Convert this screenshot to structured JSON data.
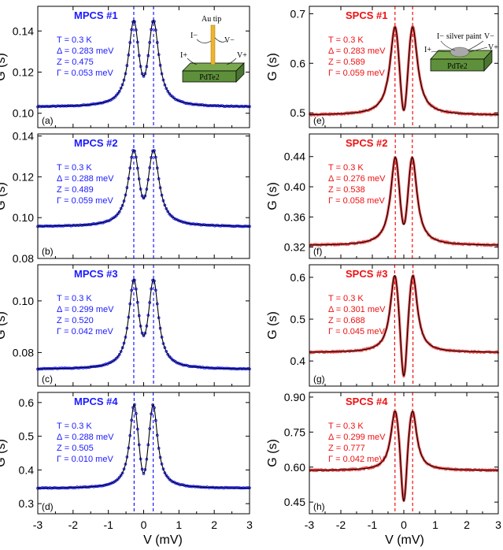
{
  "xlabel": "V (mV)",
  "ylabel": "G (s)",
  "xlim": [
    -3,
    3
  ],
  "x_ticks": [
    -3,
    -2,
    -1,
    0,
    1,
    2,
    3
  ],
  "colors": {
    "left_text": "#1a1aff",
    "left_data": "#1a1aff",
    "right_text": "#ee1111",
    "right_data": "#ee3333",
    "fit": "#000000",
    "pdte2_block": "#5e8f3a",
    "pdte2_label": "#d02020",
    "au_tip": "#f0b429"
  },
  "inset_left": {
    "tip_label": "Au tip",
    "material": "PdTe2",
    "current_minus": "I−",
    "current_plus": "I+",
    "voltage_minus": "V−",
    "voltage_plus": "V+"
  },
  "inset_right": {
    "paint_label": "silver paint",
    "material": "PdTe2",
    "current_minus": "I−",
    "current_plus": "I+",
    "voltage_minus": "V−",
    "voltage_plus": "V+"
  },
  "chart_data": [
    {
      "type": "line",
      "label": "MPCS #1",
      "letter": "(a)",
      "side": "left",
      "params": [
        "T = 0.3 K",
        "Δ = 0.283 meV",
        "Z = 0.475",
        "Γ = 0.053 meV"
      ],
      "ylim": [
        0.093,
        0.152
      ],
      "y_ticks": [
        0.1,
        0.12,
        0.14
      ],
      "y_tick_labels": [
        "0.10",
        "0.12",
        "0.14"
      ],
      "baseline": 0.103,
      "peak": 0.1455,
      "dip": 0.118,
      "peak_pos": 0.28,
      "gamma": 0.18,
      "inner_width": 0.11
    },
    {
      "type": "line",
      "label": "MPCS #2",
      "letter": "(b)",
      "side": "left",
      "params": [
        "T = 0.3 K",
        "Δ = 0.288 meV",
        "Z = 0.489",
        "Γ = 0.059 meV"
      ],
      "ylim": [
        0.08,
        0.141
      ],
      "y_ticks": [
        0.08,
        0.1,
        0.12,
        0.14
      ],
      "y_tick_labels": [
        "0.08",
        "0.10",
        "0.12",
        "0.14"
      ],
      "baseline": 0.0955,
      "peak": 0.1335,
      "dip": 0.1095,
      "peak_pos": 0.28,
      "gamma": 0.19,
      "inner_width": 0.11
    },
    {
      "type": "line",
      "label": "MPCS #3",
      "letter": "(c)",
      "side": "left",
      "params": [
        "T = 0.3 K",
        "Δ = 0.299 meV",
        "Z = 0.520",
        "Γ = 0.042 meV"
      ],
      "ylim": [
        0.067,
        0.114
      ],
      "y_ticks": [
        0.08,
        0.1
      ],
      "y_tick_labels": [
        "0.08",
        "0.10"
      ],
      "baseline": 0.0735,
      "peak": 0.1085,
      "dip": 0.0865,
      "peak_pos": 0.28,
      "gamma": 0.17,
      "inner_width": 0.1
    },
    {
      "type": "line",
      "label": "MPCS #4",
      "letter": "(d)",
      "side": "left",
      "params": [
        "T = 0.3 K",
        "Δ = 0.288 meV",
        "Z = 0.505",
        "Γ = 0.010 meV"
      ],
      "ylim": [
        0.27,
        0.63
      ],
      "y_ticks": [
        0.3,
        0.4,
        0.5,
        0.6
      ],
      "y_tick_labels": [
        "0.3",
        "0.4",
        "0.5",
        "0.6"
      ],
      "baseline": 0.345,
      "peak": 0.595,
      "dip": 0.39,
      "peak_pos": 0.27,
      "gamma": 0.15,
      "inner_width": 0.09
    },
    {
      "type": "line",
      "label": "SPCS #1",
      "letter": "(e)",
      "side": "right",
      "params": [
        "T = 0.3 K",
        "Δ = 0.283 meV",
        "Z = 0.589",
        "Γ = 0.059 meV"
      ],
      "ylim": [
        0.47,
        0.715
      ],
      "y_ticks": [
        0.5,
        0.6,
        0.7
      ],
      "y_tick_labels": [
        "0.5",
        "0.6",
        "0.7"
      ],
      "baseline": 0.495,
      "peak": 0.675,
      "dip": 0.505,
      "peak_pos": 0.28,
      "gamma": 0.19,
      "inner_width": 0.1
    },
    {
      "type": "line",
      "label": "SPCS #2",
      "letter": "(f)",
      "side": "right",
      "params": [
        "T = 0.3 K",
        "Δ = 0.276 meV",
        "Z = 0.538",
        "Γ = 0.058 meV"
      ],
      "ylim": [
        0.305,
        0.47
      ],
      "y_ticks": [
        0.32,
        0.36,
        0.4,
        0.44
      ],
      "y_tick_labels": [
        "0.32",
        "0.36",
        "0.40",
        "0.44"
      ],
      "baseline": 0.322,
      "peak": 0.44,
      "dip": 0.35,
      "peak_pos": 0.27,
      "gamma": 0.18,
      "inner_width": 0.1
    },
    {
      "type": "line",
      "label": "SPCS #3",
      "letter": "(g)",
      "side": "right",
      "params": [
        "T = 0.3 K",
        "Δ = 0.301 meV",
        "Z = 0.688",
        "Γ = 0.045 meV"
      ],
      "ylim": [
        0.34,
        0.63
      ],
      "y_ticks": [
        0.4,
        0.5,
        0.6
      ],
      "y_tick_labels": [
        "0.4",
        "0.5",
        "0.6"
      ],
      "baseline": 0.42,
      "peak": 0.605,
      "dip": 0.365,
      "peak_pos": 0.29,
      "gamma": 0.17,
      "inner_width": 0.09
    },
    {
      "type": "line",
      "label": "SPCS #4",
      "letter": "(h)",
      "side": "right",
      "params": [
        "T = 0.3 K",
        "Δ = 0.299 meV",
        "Z = 0.777",
        "Γ = 0.042 meV"
      ],
      "ylim": [
        0.4,
        0.92
      ],
      "y_ticks": [
        0.45,
        0.6,
        0.75,
        0.9
      ],
      "y_tick_labels": [
        "0.45",
        "0.60",
        "0.75",
        "0.90"
      ],
      "baseline": 0.585,
      "peak": 0.84,
      "dip": 0.455,
      "peak_pos": 0.28,
      "gamma": 0.16,
      "inner_width": 0.08
    }
  ]
}
